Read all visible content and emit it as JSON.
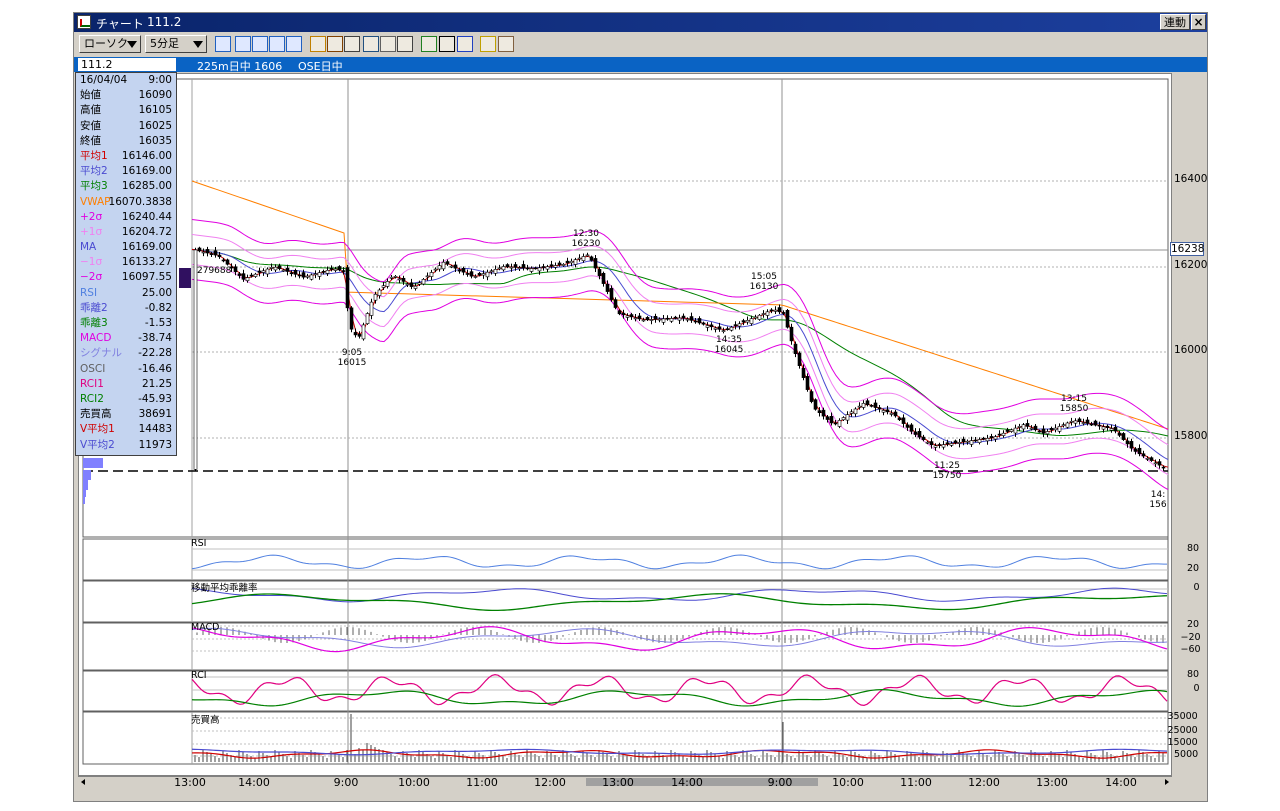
{
  "window": {
    "title": "チャート",
    "code_number": "111.2",
    "link_button": "連動",
    "close_label": "×"
  },
  "toolbar": {
    "chart_type": "ローソク",
    "interval": "5分足",
    "icons": [
      "chart-type-icon",
      "ma-icon",
      "bb-icon",
      "mle-icon",
      "pa-icon",
      "line-tool-icon",
      "fib-icon",
      "wave-icon",
      "zoom-icon",
      "volume-icon",
      "ruler-icon",
      "pen-icon",
      "pointer-icon",
      "eraser-icon",
      "print-icon",
      "settings-icon"
    ]
  },
  "infobar": {
    "code": "111.2",
    "instrument": "225m日中 1606",
    "session": "OSE日中"
  },
  "data_panel": {
    "date": "16/04/04",
    "time": "9:00",
    "rows": [
      {
        "k": "始値",
        "v": "16090",
        "color": "#000000"
      },
      {
        "k": "高値",
        "v": "16105",
        "color": "#000000"
      },
      {
        "k": "安値",
        "v": "16025",
        "color": "#000000"
      },
      {
        "k": "終値",
        "v": "16035",
        "color": "#000000"
      },
      {
        "k": "平均1",
        "v": "16146.00",
        "color": "#d00000"
      },
      {
        "k": "平均2",
        "v": "16169.00",
        "color": "#4a4ad0"
      },
      {
        "k": "平均3",
        "v": "16285.00",
        "color": "#008000"
      },
      {
        "k": "VWAP",
        "v": "16070.3838",
        "color": "#ff7f00"
      },
      {
        "k": "+2σ",
        "v": "16240.44",
        "color": "#e000e0"
      },
      {
        "k": "+1σ",
        "v": "16204.72",
        "color": "#f080f0"
      },
      {
        "k": "MA",
        "v": "16169.00",
        "color": "#4a4ad0"
      },
      {
        "k": "−1σ",
        "v": "16133.27",
        "color": "#f080f0"
      },
      {
        "k": "−2σ",
        "v": "16097.55",
        "color": "#e000e0"
      },
      {
        "k": "RSI",
        "v": "25.00",
        "color": "#5080e0"
      },
      {
        "k": "乖離2",
        "v": "-0.82",
        "color": "#4a4ad0"
      },
      {
        "k": "乖離3",
        "v": "-1.53",
        "color": "#008000"
      },
      {
        "k": "MACD",
        "v": "-38.74",
        "color": "#e000e0"
      },
      {
        "k": "シグナル",
        "v": "-22.28",
        "color": "#8080e0"
      },
      {
        "k": "OSCI",
        "v": "-16.46",
        "color": "#606060"
      },
      {
        "k": "RCI1",
        "v": "21.25",
        "color": "#e00080"
      },
      {
        "k": "RCI2",
        "v": "-45.93",
        "color": "#008000"
      },
      {
        "k": "売買高",
        "v": "38691",
        "color": "#000000"
      },
      {
        "k": "V平均1",
        "v": "14483",
        "color": "#d00000"
      },
      {
        "k": "V平均2",
        "v": "11973",
        "color": "#4a4ad0"
      }
    ]
  },
  "main_chart": {
    "y_ticks": [
      "16400",
      "16200",
      "16000",
      "15800"
    ],
    "current_price": "16238",
    "volume_label": "279688",
    "annotations": [
      {
        "t": "12:30",
        "p": "16230"
      },
      {
        "t": "15:05",
        "p": "16130"
      },
      {
        "t": "14:35",
        "p": "16045"
      },
      {
        "t": "9:05",
        "p": "16015"
      },
      {
        "t": "13:15",
        "p": "15850"
      },
      {
        "t": "11:25",
        "p": "15750"
      },
      {
        "t": "14:",
        "p": "156"
      }
    ]
  },
  "subcharts": {
    "rsi": {
      "title": "RSI",
      "ticks": [
        "80",
        "20"
      ]
    },
    "kairi": {
      "title": "移動平均乖離率",
      "ticks": [
        "0"
      ]
    },
    "macd": {
      "title": "MACD",
      "ticks": [
        "20",
        "−20",
        "−60"
      ]
    },
    "rci": {
      "title": "RCI",
      "ticks": [
        "80",
        "0"
      ]
    },
    "volume": {
      "title": "売買高",
      "ticks": [
        "35000",
        "25000",
        "15000",
        "5000"
      ]
    }
  },
  "time_axis": [
    "13:00",
    "14:00",
    "9:00",
    "10:00",
    "11:00",
    "12:00",
    "13:00",
    "14:00",
    "9:00",
    "10:00",
    "11:00",
    "12:00",
    "13:00",
    "14:00"
  ],
  "colors": {
    "candle_up": "#ffffff",
    "candle_down": "#000000",
    "ma1": "#d00000",
    "ma2": "#4a4ad0",
    "ma3": "#008000",
    "vwap": "#ff7f00",
    "band2": "#e000e0",
    "band1": "#f080f0"
  }
}
